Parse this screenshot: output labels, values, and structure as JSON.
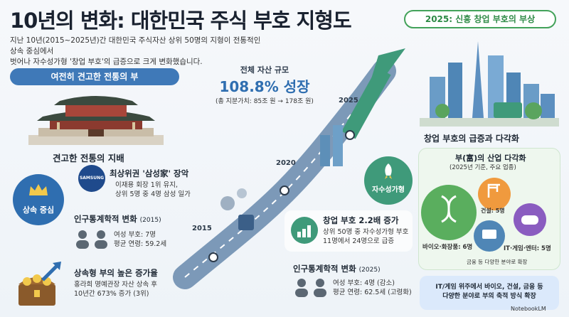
{
  "title": "10년의 변화: 대한민국 주식 부호 지형도",
  "intro": [
    "지난 10년(2015~2025년)간 대한민국 주식자산 상위 50명의 지형이 전통적인 상속 중심에서",
    "벗어나 자수성가형 '창업 부호'의 급증으로 크게 변화했습니다."
  ],
  "left": {
    "pill": "여전히 견고한 전통의 부",
    "section_title": "견고한 전통의 지배",
    "badge": "상속 중심",
    "samsung_logo": "SAMSUNG",
    "samsung_title": "최상위권 '삼성家' 장악",
    "samsung_lines": [
      "이재용 회장 1위 유지,",
      "상위 5명 중 4명 삼성 일가"
    ],
    "demo_title": "인구통계학적 변화",
    "demo_year": "(2015)",
    "demo_lines": [
      "여성 부호: 7명",
      "평균 연령: 59.2세"
    ],
    "growth_title": "상속형 부의 높은 증가율",
    "growth_lines": [
      "홍라희 명예관장 자산 상속 후",
      "10년간 673% 증가 (3위)"
    ]
  },
  "center": {
    "asset_title": "전체 자산 규모",
    "asset_growth": "108.8% 성장",
    "asset_detail": "(총 지분가치: 85조 원 → 178조 원)",
    "years": [
      "2015",
      "2020",
      "2025"
    ],
    "selfmade_label": "자수성가형",
    "founder_title": "창업 부호 2.2배 증가",
    "founder_lines": [
      "상위 50명 중 자수성가형 부호",
      "11명에서 24명으로 급증"
    ],
    "demo_title": "인구통계학적 변화",
    "demo_year": "(2025)",
    "demo_lines": [
      "여성 부호: 4명 (감소)",
      "평균 연령: 62.5세 (고령화)"
    ]
  },
  "right": {
    "pill": "2025: 신흥 창업 부호의 부상",
    "section_title": "창업 부호의 급증과 다각화",
    "diversify_title": "부(富)의 산업 다각화",
    "diversify_sub": "(2025년 기준, 주요 업종)",
    "bio": "바이오·화장품: 6명",
    "construction": "건설: 5명",
    "it": "IT·게임·엔터: 5명",
    "others": "금융 등 다양한 분야로 확장",
    "note_lines": [
      "IT/게임 위주에서 바이오, 건설, 금융 등",
      "다양한 분야로 부의 축적 방식 확장"
    ]
  },
  "brand": "NotebookLM",
  "colors": {
    "blue": "#2f6eb0",
    "green": "#43a25a",
    "arrow": "#3f9a7a"
  }
}
